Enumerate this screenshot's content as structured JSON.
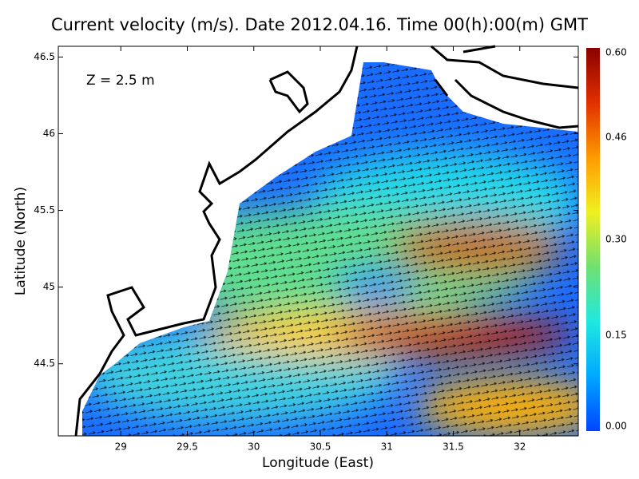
{
  "chart_data": {
    "type": "map",
    "title": "Current velocity (m/s). Date 2012.04.16. Time 00(h):00(m) GMT",
    "annotation": "Z = 2.5 m",
    "x_label": "Longitude (East)",
    "y_label": "Latitude (North)",
    "xlim": [
      28.53,
      32.44
    ],
    "ylim": [
      44.03,
      46.57
    ],
    "xticks": [
      29,
      29.5,
      30,
      30.5,
      31,
      31.5,
      32
    ],
    "yticks": [
      44.5,
      45,
      45.5,
      46,
      46.5
    ],
    "colorbar": {
      "lim": [
        0,
        0.6
      ],
      "ticks": [
        {
          "value": 0,
          "label": "0.00"
        },
        {
          "value": 0.15,
          "label": "0.15"
        },
        {
          "value": 0.3,
          "label": "0.30"
        },
        {
          "value": 0.46,
          "label": "0.46"
        },
        {
          "value": 0.6,
          "label": "0.60"
        }
      ],
      "colors": [
        "#0044ff",
        "#00a8ff",
        "#20e8e0",
        "#70e070",
        "#f0f020",
        "#ff9a00",
        "#e03000",
        "#8a0000"
      ]
    }
  }
}
